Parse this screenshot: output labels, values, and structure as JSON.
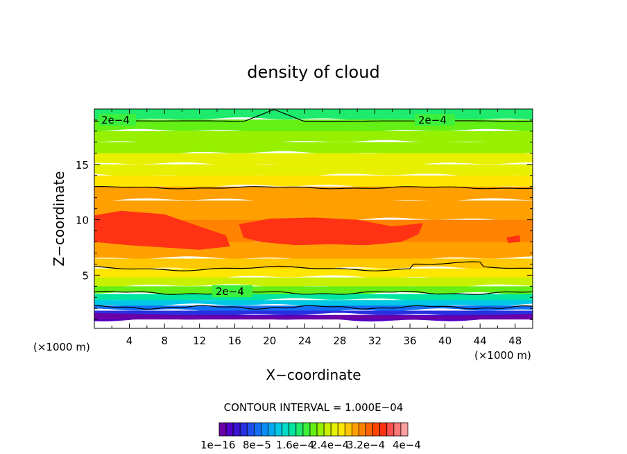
{
  "chart_data": {
    "type": "heatmap",
    "title": "density of cloud",
    "xlabel": "X−coordinate",
    "ylabel": "Z−coordinate",
    "x_unit_left": "(×1000 m)",
    "x_unit_right": "(×1000 m)",
    "xlim": [
      0,
      50
    ],
    "ylim": [
      0.2,
      20
    ],
    "xticks": [
      4,
      8,
      12,
      16,
      20,
      24,
      28,
      32,
      36,
      40,
      44,
      48
    ],
    "yticks": [
      5,
      10,
      15
    ],
    "contour_interval_label": "CONTOUR INTERVAL = 1.000E−04",
    "contour_labels": [
      "2e−4",
      "2e−4",
      "2e−4"
    ],
    "colorbar_labels": [
      "1e−16",
      "8e−5",
      "1.6e−4",
      "2.4e−4",
      "3.2e−4",
      "4e−4"
    ],
    "colorbar_colors": [
      "#6a00a8",
      "#5000c8",
      "#3c14d2",
      "#2830e0",
      "#1e50f0",
      "#146ef5",
      "#0a8cf5",
      "#00aaf0",
      "#00c8e6",
      "#00dcc8",
      "#00e6a0",
      "#1eeb6e",
      "#3cf03c",
      "#64f014",
      "#96f000",
      "#c8f000",
      "#e6f000",
      "#ffe600",
      "#ffc800",
      "#ffa000",
      "#ff8200",
      "#ff6400",
      "#ff4600",
      "#ff3214",
      "#ff5050",
      "#ff7878",
      "#ffa0a0"
    ],
    "band_profile": [
      {
        "z": 19.6,
        "value": 0.00017
      },
      {
        "z": 18.5,
        "value": 0.0002
      },
      {
        "z": 17.5,
        "value": 0.00021
      },
      {
        "z": 16.5,
        "value": 0.00022
      },
      {
        "z": 15.5,
        "value": 0.00024
      },
      {
        "z": 14.5,
        "value": 0.00025
      },
      {
        "z": 13.5,
        "value": 0.00026
      },
      {
        "z": 12.5,
        "value": 0.000285
      },
      {
        "z": 11.0,
        "value": 0.0003
      },
      {
        "z": 9.0,
        "value": 0.00031
      },
      {
        "z": 7.0,
        "value": 0.0003
      },
      {
        "z": 6.0,
        "value": 0.00028
      },
      {
        "z": 5.2,
        "value": 0.00026
      },
      {
        "z": 4.4,
        "value": 0.00023
      },
      {
        "z": 3.6,
        "value": 0.0002
      },
      {
        "z": 3.0,
        "value": 0.00016
      },
      {
        "z": 2.5,
        "value": 0.00012
      },
      {
        "z": 2.0,
        "value": 8e-05
      },
      {
        "z": 1.6,
        "value": 4e-05
      },
      {
        "z": 1.2,
        "value": 1e-05
      }
    ]
  }
}
